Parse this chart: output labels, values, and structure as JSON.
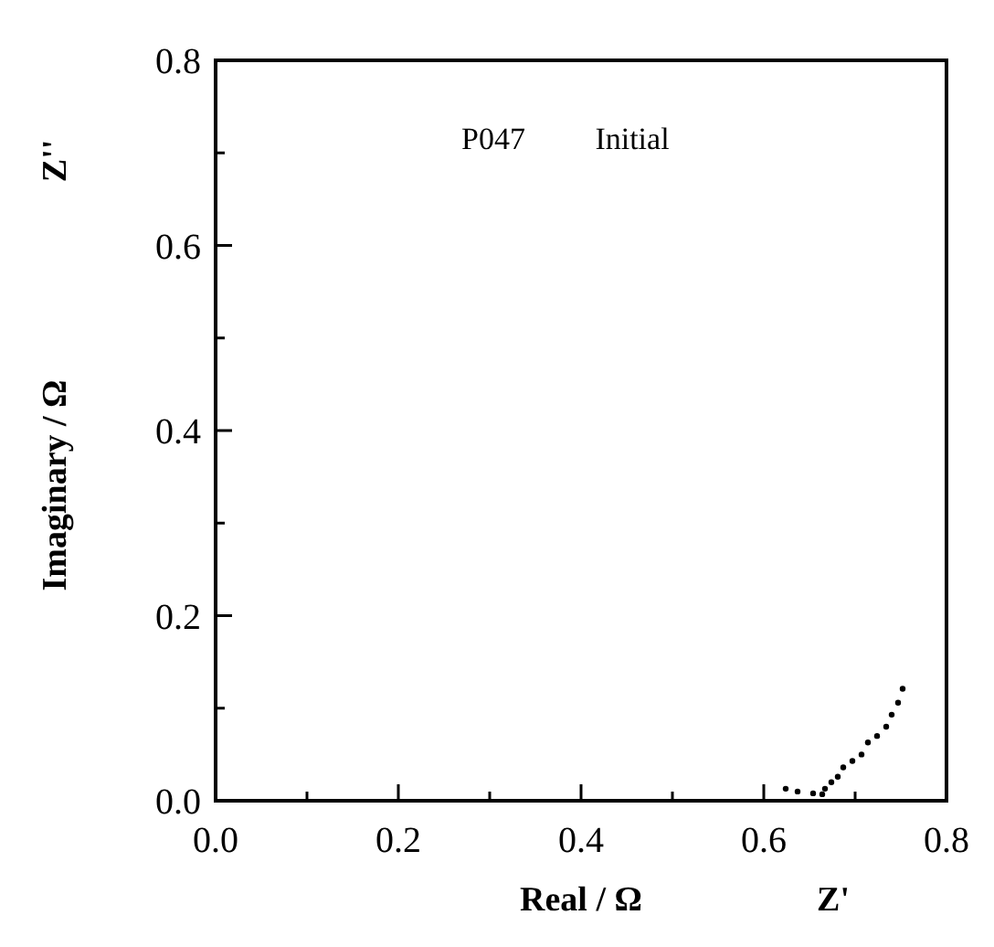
{
  "chart_data": {
    "type": "scatter",
    "xlabel": "Real / Ω",
    "ylabel": "Imaginary / Ω",
    "annotations": [
      "P047",
      "Initial",
      "Z''",
      "Z'"
    ],
    "xlim": [
      0,
      0.8
    ],
    "ylim": [
      0,
      0.8
    ],
    "xticks": [
      {
        "value": 0,
        "label": "0.0"
      },
      {
        "value": 0.1,
        "label": null
      },
      0.2,
      {
        "value": 0.3,
        "label": null
      },
      0.4,
      {
        "value": 0.5,
        "label": null
      },
      0.6,
      {
        "value": 0.7,
        "label": null
      },
      0.8
    ],
    "yticks": [
      {
        "value": 0,
        "label": "0.0"
      },
      {
        "value": 0.1,
        "label": null
      },
      0.2,
      {
        "value": 0.3,
        "label": null
      },
      0.4,
      {
        "value": 0.5,
        "label": null
      },
      0.6,
      {
        "value": 0.7,
        "label": null
      },
      0.8
    ],
    "grid": false,
    "marker": "circle",
    "series": [
      {
        "color": "#000000",
        "x": [
          0.624,
          0.637,
          0.654,
          0.664,
          0.667,
          0.674,
          0.681,
          0.687,
          0.697,
          0.707,
          0.714,
          0.724,
          0.734,
          0.74,
          0.747,
          0.752
        ],
        "values": [
          0.013,
          0.01,
          0.008,
          0.007,
          0.013,
          0.02,
          0.026,
          0.036,
          0.043,
          0.05,
          0.063,
          0.07,
          0.08,
          0.093,
          0.106,
          0.121
        ]
      }
    ]
  }
}
